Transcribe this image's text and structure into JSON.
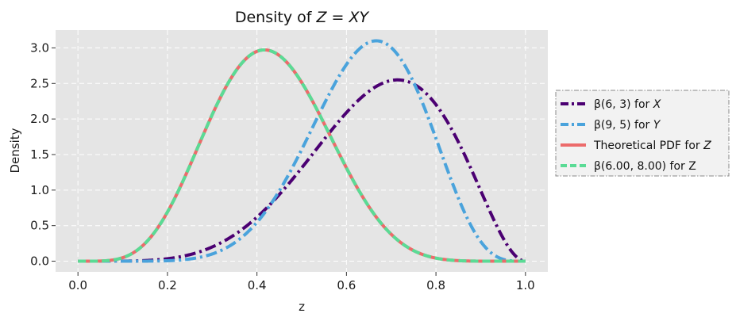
{
  "chart_data": {
    "type": "line",
    "title_prefix": "Density of ",
    "title_math": "Z = XY",
    "xlabel": "z",
    "ylabel": "Density",
    "xlim": [
      -0.05,
      1.05
    ],
    "ylim": [
      -0.15,
      3.25
    ],
    "xticks": [
      0.0,
      0.2,
      0.4,
      0.6,
      0.8,
      1.0
    ],
    "xtick_labels": [
      "0.0",
      "0.2",
      "0.4",
      "0.6",
      "0.8",
      "1.0"
    ],
    "yticks": [
      0.0,
      0.5,
      1.0,
      1.5,
      2.0,
      2.5,
      3.0
    ],
    "ytick_labels": [
      "0.0",
      "0.5",
      "1.0",
      "1.5",
      "2.0",
      "2.5",
      "3.0"
    ],
    "grid": true,
    "legend_position": "right, outside",
    "colors": {
      "plot_bg": "#e5e5e5",
      "grid": "#ffffff"
    },
    "series": [
      {
        "name": "β(6, 3) for X",
        "legend_prefix": "β(6, 3) for ",
        "legend_var": "X",
        "distribution": "beta",
        "a": 6,
        "b": 3,
        "color": "#4b0072",
        "linestyle": "dashdot"
      },
      {
        "name": "β(9, 5) for Y",
        "legend_prefix": "β(9, 5) for ",
        "legend_var": "Y",
        "distribution": "beta",
        "a": 9,
        "b": 5,
        "color": "#4aa3dc",
        "linestyle": "dashdot"
      },
      {
        "name": "Theoretical PDF for Z",
        "legend_prefix": "Theoretical PDF for ",
        "legend_var": "Z",
        "distribution": "beta",
        "a": 6,
        "b": 8,
        "color": "#ec6b6b",
        "linestyle": "solid"
      },
      {
        "name": "β(6.00, 8.00) for Z",
        "legend_prefix": "β(6.00, 8.00) for Z",
        "legend_var": "",
        "distribution": "beta",
        "a": 6,
        "b": 8,
        "color": "#5adb95",
        "linestyle": "dashed"
      }
    ]
  }
}
